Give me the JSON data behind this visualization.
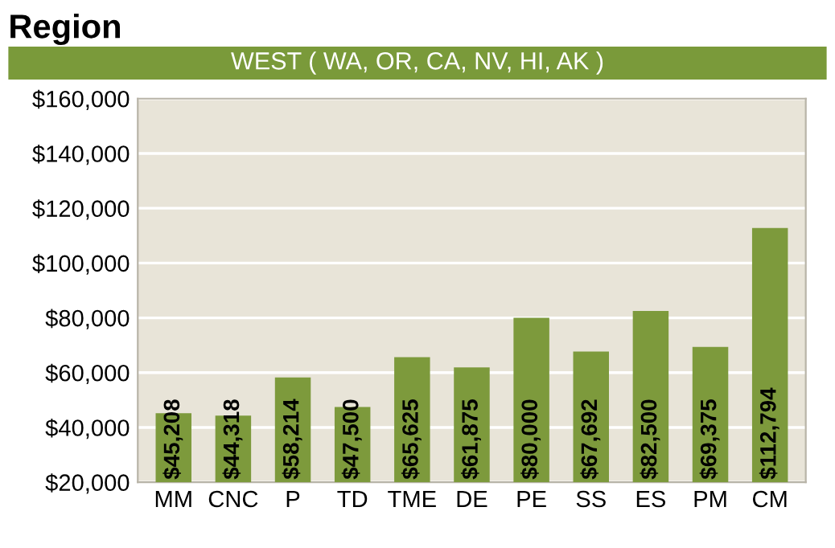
{
  "chart_data": {
    "type": "bar",
    "title": "Region",
    "subtitle": "WEST ( WA, OR, CA, NV, HI, AK )",
    "categories": [
      "MM",
      "CNC",
      "P",
      "TD",
      "TME",
      "DE",
      "PE",
      "SS",
      "ES",
      "PM",
      "CM"
    ],
    "values": [
      45208,
      44318,
      58214,
      47500,
      65625,
      61875,
      80000,
      67692,
      82500,
      69375,
      112794
    ],
    "value_labels": [
      "$45,208",
      "$44,318",
      "$58,214",
      "$47,500",
      "$65,625",
      "$61,875",
      "$80,000",
      "$67,692",
      "$82,500",
      "$69,375",
      "$112,794"
    ],
    "color": "#7d9a3c",
    "ylim": [
      20000,
      160000
    ],
    "yticks": [
      {
        "value": 20000,
        "label": "$20,000"
      },
      {
        "value": 40000,
        "label": "$40,000"
      },
      {
        "value": 60000,
        "label": "$60,000"
      },
      {
        "value": 80000,
        "label": "$80,000"
      },
      {
        "value": 100000,
        "label": "$100,000"
      },
      {
        "value": 120000,
        "label": "$120,000"
      },
      {
        "value": 140000,
        "label": "$140,000"
      },
      {
        "value": 160000,
        "label": "$160,000"
      }
    ],
    "grid": "y"
  }
}
